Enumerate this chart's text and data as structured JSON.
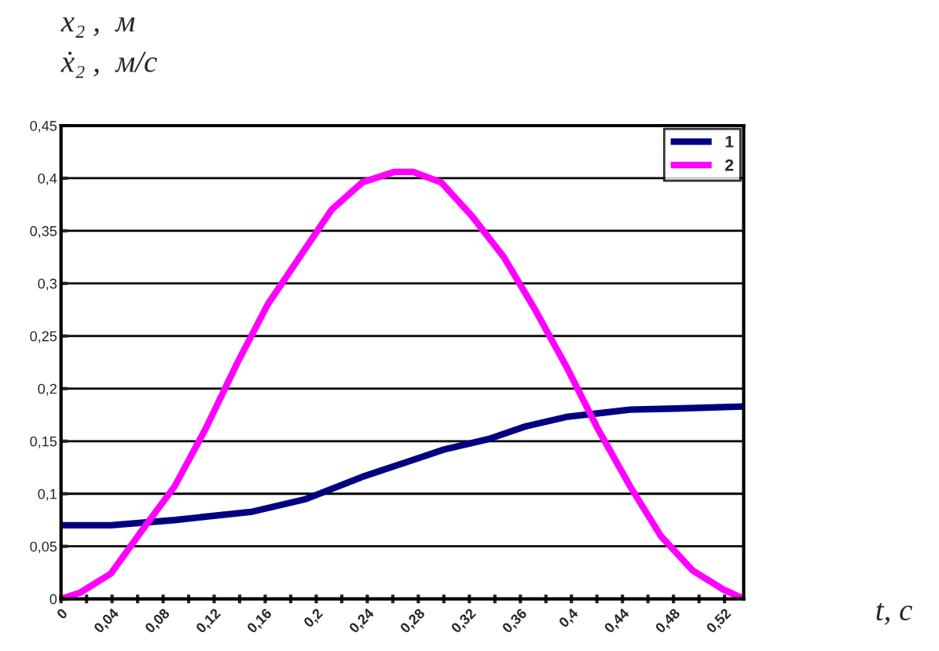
{
  "chart_data": {
    "type": "line",
    "xlabel": "t, с",
    "ylabel": "x₂ ,  м\nẋ₂ ,  м/с",
    "xlim": [
      0,
      0.535
    ],
    "ylim": [
      0,
      0.45
    ],
    "xticks": [
      0,
      {
        "value": 0.02,
        "label": null
      },
      {
        "value": 0.04,
        "label": "0,04"
      },
      {
        "value": 0.06,
        "label": null
      },
      {
        "value": 0.08,
        "label": "0,08"
      },
      {
        "value": 0.1,
        "label": null
      },
      {
        "value": 0.12,
        "label": "0,12"
      },
      {
        "value": 0.14,
        "label": null
      },
      {
        "value": 0.16,
        "label": "0,16"
      },
      {
        "value": 0.18,
        "label": null
      },
      {
        "value": 0.2,
        "label": "0,2"
      },
      {
        "value": 0.22,
        "label": null
      },
      {
        "value": 0.24,
        "label": "0,24"
      },
      {
        "value": 0.26,
        "label": null
      },
      {
        "value": 0.28,
        "label": "0,28"
      },
      {
        "value": 0.3,
        "label": null
      },
      {
        "value": 0.32,
        "label": "0,32"
      },
      {
        "value": 0.34,
        "label": null
      },
      {
        "value": 0.36,
        "label": "0,36"
      },
      {
        "value": 0.38,
        "label": null
      },
      {
        "value": 0.4,
        "label": "0,4"
      },
      {
        "value": 0.42,
        "label": null
      },
      {
        "value": 0.44,
        "label": "0,44"
      },
      {
        "value": 0.46,
        "label": null
      },
      {
        "value": 0.48,
        "label": "0,48"
      },
      {
        "value": 0.5,
        "label": null
      },
      {
        "value": 0.52,
        "label": "0,52"
      }
    ],
    "yticks": [
      0,
      {
        "value": 0.05,
        "label": "0,05"
      },
      {
        "value": 0.1,
        "label": "0,1"
      },
      {
        "value": 0.15,
        "label": "0,15"
      },
      {
        "value": 0.2,
        "label": "0,2"
      },
      {
        "value": 0.25,
        "label": "0,25"
      },
      {
        "value": 0.3,
        "label": "0,3"
      },
      {
        "value": 0.35,
        "label": "0,35"
      },
      {
        "value": 0.4,
        "label": "0,4"
      },
      {
        "value": 0.45,
        "label": "0,45"
      }
    ],
    "grid": "y",
    "legend": "top right",
    "line_style": "solid",
    "marker": "none",
    "series": [
      {
        "name": "1",
        "color": "#000080",
        "x": [
          0,
          0.039,
          0.089,
          0.15,
          0.192,
          0.236,
          0.3,
          0.335,
          0.364,
          0.396,
          0.446,
          0.482,
          0.535
        ],
        "values": [
          0.07,
          0.07,
          0.075,
          0.083,
          0.095,
          0.116,
          0.142,
          0.152,
          0.164,
          0.173,
          0.18,
          0.181,
          0.183
        ]
      },
      {
        "name": "2",
        "color": "#ff00ff",
        "x": [
          0,
          0.015,
          0.039,
          0.064,
          0.089,
          0.113,
          0.138,
          0.162,
          0.187,
          0.212,
          0.236,
          0.261,
          0.276,
          0.298,
          0.322,
          0.347,
          0.372,
          0.396,
          0.421,
          0.446,
          0.47,
          0.495,
          0.519,
          0.535
        ],
        "values": [
          0,
          0.006,
          0.024,
          0.066,
          0.107,
          0.161,
          0.224,
          0.28,
          0.325,
          0.37,
          0.396,
          0.406,
          0.406,
          0.396,
          0.364,
          0.325,
          0.274,
          0.221,
          0.161,
          0.107,
          0.06,
          0.027,
          0.009,
          0
        ]
      }
    ]
  }
}
